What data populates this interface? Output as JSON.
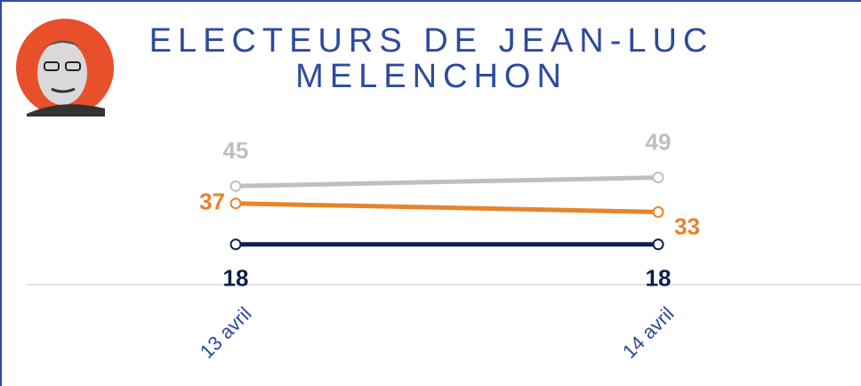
{
  "chart_data": {
    "type": "line",
    "title": "ELECTEURS DE JEAN-LUC MELENCHON",
    "categories": [
      "13 avril",
      "14 avril"
    ],
    "ylim": [
      0,
      55
    ],
    "series": [
      {
        "name": null,
        "color": "#bfbfbf",
        "values": [
          45,
          49
        ]
      },
      {
        "name": null,
        "color": "#e8832a",
        "values": [
          37,
          33
        ]
      },
      {
        "name": null,
        "color": "#0d1f4e",
        "values": [
          18,
          18
        ]
      }
    ]
  }
}
